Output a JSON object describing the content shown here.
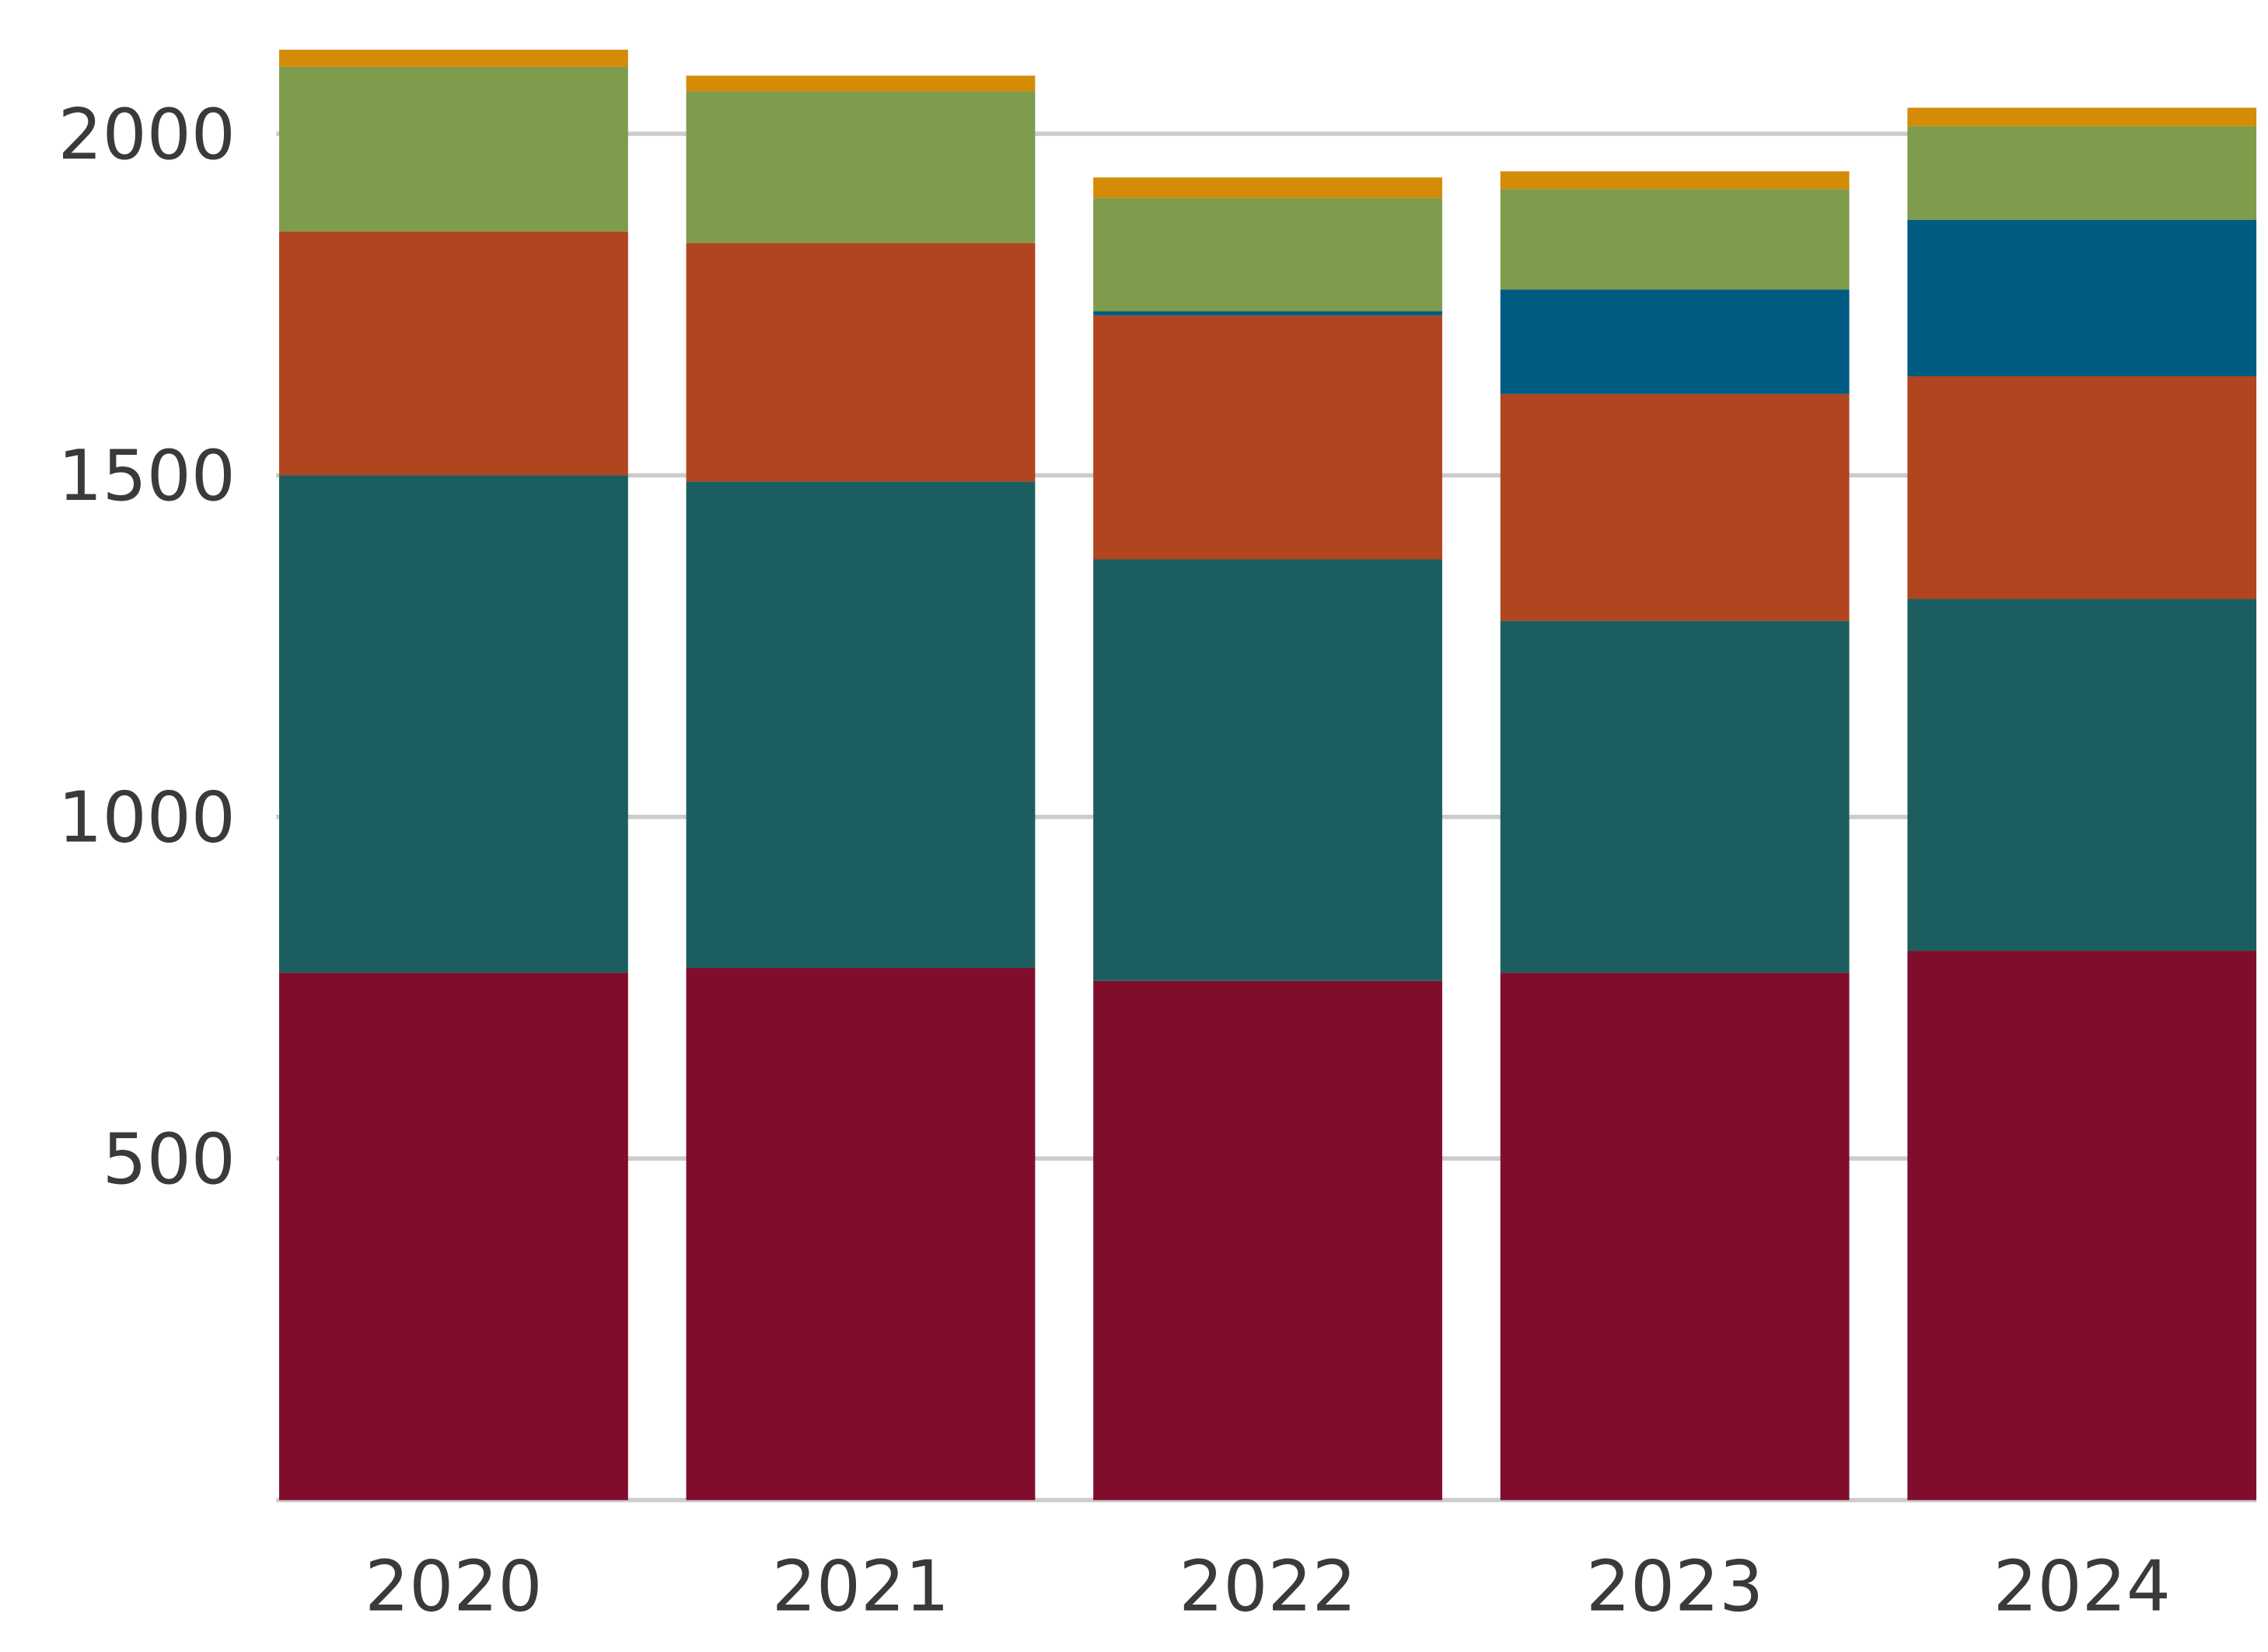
{
  "chart_data": {
    "type": "bar",
    "stacked": true,
    "title": "",
    "xlabel": "",
    "ylabel": "",
    "categories": [
      "2020",
      "2021",
      "2022",
      "2023",
      "2024"
    ],
    "ylim": [
      0,
      2150
    ],
    "yticks": [
      500,
      1000,
      1500,
      2000
    ],
    "grid": true,
    "legend": "none",
    "series": [
      {
        "color": "#800d2c",
        "values": [
          772,
          779,
          760,
          772,
          804
        ]
      },
      {
        "color": "#1c5e5f",
        "values": [
          728,
          712,
          617,
          515,
          515
        ]
      },
      {
        "color": "#b0451f",
        "values": [
          357,
          349,
          357,
          332,
          326
        ]
      },
      {
        "color": "#005b82",
        "values": [
          0,
          0,
          6,
          153,
          229
        ]
      },
      {
        "color": "#7f9b4c",
        "values": [
          241,
          222,
          166,
          147,
          137
        ]
      },
      {
        "color": "#d48b06",
        "values": [
          25,
          23,
          30,
          26,
          27
        ]
      }
    ]
  }
}
